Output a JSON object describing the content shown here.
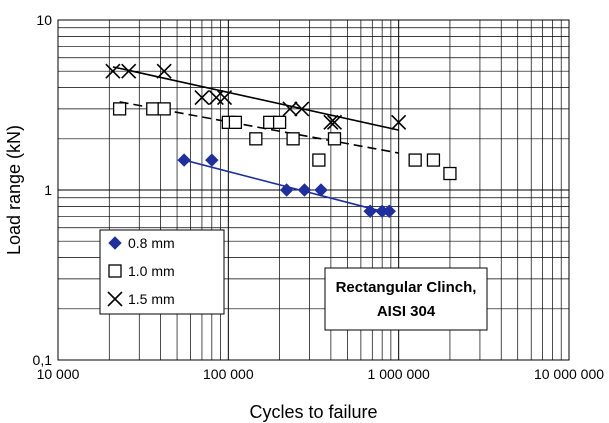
{
  "chart_data": {
    "type": "scatter",
    "xlabel": "Cycles to failure",
    "ylabel": "Load range (kN)",
    "x_scale": "log",
    "y_scale": "log",
    "xlim": [
      10000,
      10000000
    ],
    "ylim": [
      0.1,
      10
    ],
    "x_ticks": [
      {
        "value": 10000,
        "label": "10 000"
      },
      {
        "value": 100000,
        "label": "100 000"
      },
      {
        "value": 1000000,
        "label": "1 000 000"
      },
      {
        "value": 10000000,
        "label": "10 000 000"
      }
    ],
    "y_ticks": [
      {
        "value": 0.1,
        "label": "0,1"
      },
      {
        "value": 1,
        "label": "1"
      },
      {
        "value": 10,
        "label": "10"
      }
    ],
    "grid": true,
    "legend_position": "lower-left",
    "annotation": [
      "Rectangular Clinch,",
      "AISI 304"
    ],
    "series": [
      {
        "name": "0.8 mm",
        "marker": "diamond",
        "color": "#1f2f9f",
        "trendline": {
          "style": "solid",
          "color": "#1f2f9f",
          "x": [
            55000,
            880000
          ],
          "y": [
            1.5,
            0.73
          ]
        },
        "points": [
          [
            55000,
            1.5
          ],
          [
            80000,
            1.5
          ],
          [
            220000,
            1.0
          ],
          [
            280000,
            1.0
          ],
          [
            350000,
            1.0
          ],
          [
            680000,
            0.75
          ],
          [
            800000,
            0.75
          ],
          [
            880000,
            0.75
          ]
        ]
      },
      {
        "name": "1.0 mm",
        "marker": "square",
        "color": "#000000",
        "trendline": {
          "style": "dashed",
          "color": "#000000",
          "x": [
            23000,
            1000000
          ],
          "y": [
            3.3,
            1.65
          ]
        },
        "points": [
          [
            23000,
            3.0
          ],
          [
            36000,
            3.0
          ],
          [
            42000,
            3.0
          ],
          [
            100000,
            2.5
          ],
          [
            110000,
            2.5
          ],
          [
            145000,
            2.0
          ],
          [
            175000,
            2.5
          ],
          [
            200000,
            2.5
          ],
          [
            240000,
            2.0
          ],
          [
            340000,
            1.5
          ],
          [
            420000,
            2.0
          ],
          [
            1250000,
            1.5
          ],
          [
            1600000,
            1.5
          ],
          [
            2000000,
            1.25
          ]
        ]
      },
      {
        "name": "1.5 mm",
        "marker": "x",
        "color": "#000000",
        "trendline": {
          "style": "solid",
          "color": "#000000",
          "x": [
            21000,
            1000000
          ],
          "y": [
            5.3,
            2.25
          ]
        },
        "points": [
          [
            21000,
            5.0
          ],
          [
            26000,
            5.0
          ],
          [
            42000,
            5.0
          ],
          [
            70000,
            3.5
          ],
          [
            85000,
            3.5
          ],
          [
            95000,
            3.5
          ],
          [
            230000,
            3.0
          ],
          [
            270000,
            3.0
          ],
          [
            400000,
            2.5
          ],
          [
            420000,
            2.5
          ],
          [
            1000000,
            2.5
          ]
        ]
      }
    ]
  }
}
